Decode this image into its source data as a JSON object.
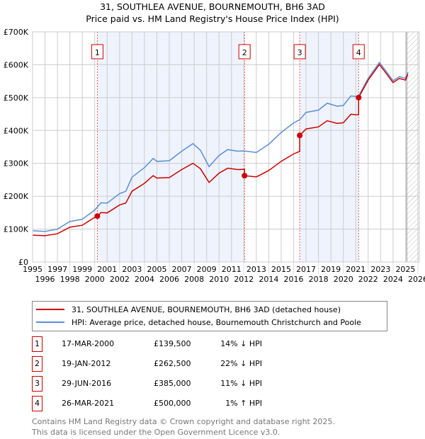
{
  "title": "31, SOUTHLEA AVENUE, BOURNEMOUTH, BH6 3AD",
  "subtitle": "Price paid vs. HM Land Registry's House Price Index (HPI)",
  "chart_data": {
    "type": "line",
    "ylim": [
      0,
      700000
    ],
    "xlim": [
      1995,
      2026
    ],
    "yticks": [
      {
        "v": 0,
        "label": "£0"
      },
      {
        "v": 100000,
        "label": "£100K"
      },
      {
        "v": 200000,
        "label": "£200K"
      },
      {
        "v": 300000,
        "label": "£300K"
      },
      {
        "v": 400000,
        "label": "£400K"
      },
      {
        "v": 500000,
        "label": "£500K"
      },
      {
        "v": 600000,
        "label": "£600K"
      },
      {
        "v": 700000,
        "label": "£700K"
      }
    ],
    "xticks": [
      "1995",
      "1996",
      "1997",
      "1998",
      "1999",
      "2000",
      "2001",
      "2002",
      "2003",
      "2004",
      "2005",
      "2006",
      "2007",
      "2008",
      "2009",
      "2010",
      "2011",
      "2012",
      "2013",
      "2014",
      "2015",
      "2016",
      "2017",
      "2018",
      "2019",
      "2020",
      "2021",
      "2022",
      "2023",
      "2024",
      "2025",
      "2026"
    ],
    "series": [
      {
        "name": "31, SOUTHLEA AVENUE, BOURNEMOUTH, BH6 3AD (detached house)",
        "color": "#cc0000",
        "derived_from": "hpi_with_sales"
      },
      {
        "name": "HPI: Average price, detached house, Bournemouth Christchurch and Poole",
        "color": "#5b8fd4",
        "x": [
          1995,
          1996,
          1997,
          1998,
          1999,
          2000,
          2000.5,
          2001,
          2002,
          2002.5,
          2003,
          2004,
          2004.7,
          2005,
          2006,
          2007,
          2007.9,
          2008.5,
          2009.2,
          2010,
          2010.7,
          2011.5,
          2012,
          2013,
          2014,
          2015,
          2016,
          2016.5,
          2017,
          2018,
          2018.7,
          2019.5,
          2020,
          2020.6,
          2021.2,
          2022,
          2022.9,
          2023.5,
          2024,
          2024.5,
          2025,
          2025.2
        ],
        "y": [
          95000,
          93000,
          100000,
          123000,
          130000,
          158000,
          180000,
          179000,
          208000,
          215000,
          258000,
          287000,
          315000,
          306000,
          308000,
          337000,
          360000,
          340000,
          290000,
          324000,
          342000,
          337000,
          338000,
          333000,
          358000,
          394000,
          423000,
          433000,
          455000,
          462000,
          483000,
          474000,
          476000,
          505000,
          503000,
          559000,
          607000,
          577000,
          551000,
          564000,
          559000,
          577000
        ]
      }
    ],
    "sales": [
      {
        "n": "1",
        "x": 2000.21,
        "date": "17-MAR-2000",
        "price": 139500,
        "price_label": "£139,500",
        "hpi": "14% ↓ HPI"
      },
      {
        "n": "2",
        "x": 2012.05,
        "date": "19-JAN-2012",
        "price": 262500,
        "price_label": "£262,500",
        "hpi": "22% ↓ HPI"
      },
      {
        "n": "3",
        "x": 2016.49,
        "date": "29-JUN-2016",
        "price": 385000,
        "price_label": "£385,000",
        "hpi": "11% ↓ HPI"
      },
      {
        "n": "4",
        "x": 2021.23,
        "date": "26-MAR-2021",
        "price": 500000,
        "price_label": "£500,000",
        "hpi": "1% ↑ HPI"
      }
    ],
    "hatch_from": 2025.1
  },
  "footer": [
    "Contains HM Land Registry data © Crown copyright and database right 2025.",
    "This data is licensed under the Open Government Licence v3.0."
  ]
}
